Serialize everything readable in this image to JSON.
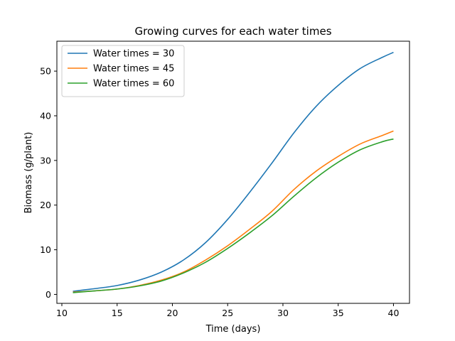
{
  "chart_data": {
    "type": "line",
    "title": "Growing curves for each water times",
    "xlabel": "Time (days)",
    "ylabel": "Biomass (g/plant)",
    "xlim": [
      9.55,
      41.45
    ],
    "ylim": [
      -2.0,
      56.7
    ],
    "xticks": [
      10,
      15,
      20,
      25,
      30,
      35,
      40
    ],
    "yticks": [
      0,
      10,
      20,
      30,
      40,
      50
    ],
    "legend_position": "upper-left",
    "grid": false,
    "x": [
      11,
      13,
      15,
      17,
      19,
      21,
      23,
      25,
      27,
      29,
      31,
      33,
      35,
      37,
      39,
      40
    ],
    "series": [
      {
        "name": "Water times = 30",
        "color": "#1f77b4",
        "values": [
          0.7,
          1.3,
          2.0,
          3.2,
          5.0,
          7.7,
          11.6,
          16.8,
          22.9,
          29.4,
          36.2,
          42.1,
          46.8,
          50.6,
          53.1,
          54.2
        ]
      },
      {
        "name": "Water times = 45",
        "color": "#ff7f0e",
        "values": [
          0.5,
          0.8,
          1.2,
          2.0,
          3.2,
          5.0,
          7.7,
          10.9,
          14.6,
          18.6,
          23.5,
          27.6,
          30.9,
          33.7,
          35.6,
          36.6
        ]
      },
      {
        "name": "Water times = 60",
        "color": "#2ca02c",
        "values": [
          0.4,
          0.8,
          1.2,
          1.9,
          3.0,
          4.8,
          7.2,
          10.3,
          13.8,
          17.6,
          22.0,
          26.1,
          29.6,
          32.4,
          34.2,
          34.8
        ]
      }
    ]
  }
}
